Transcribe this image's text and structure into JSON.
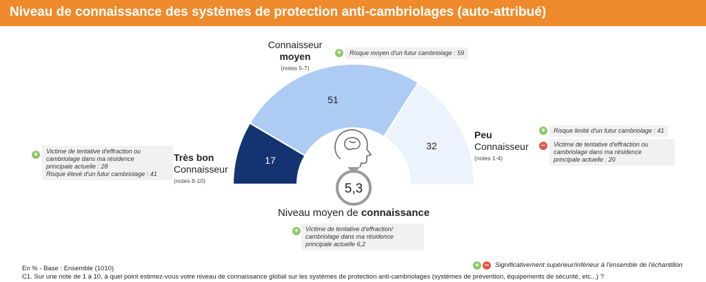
{
  "title": "Niveau de connaissance des systèmes de protection anti-cambriolages (auto-attribué)",
  "chart_data": {
    "type": "pie",
    "layout": "semi-donut",
    "unit": "%",
    "categories": [
      "Très bon Connaisseur",
      "Connaisseur moyen",
      "Peu Connaisseur"
    ],
    "values": [
      17,
      51,
      32
    ],
    "colors": [
      "#143471",
      "#aecbf4",
      "#edf3fc"
    ],
    "center_value": "5,3"
  },
  "segments": {
    "tres_bon": {
      "label_line1": "Très bon",
      "label_line2": "Connaisseur",
      "notes": "(notes 8-10)",
      "value": "17",
      "annotation_lines": [
        "Victime de tentative d'effraction ou",
        "cambriolage dans ma résidence",
        "principale actuelle : 28",
        "Risque élevé d'un futur cambriolage : 41"
      ]
    },
    "moyen": {
      "label_line1": "Connaisseur",
      "label_line2": "moyen",
      "notes": "(notes 5-7)",
      "value": "51",
      "annotation": "Risque moyen d'un futur cambriolage : 59"
    },
    "peu": {
      "label_line1": "Peu",
      "label_line2": "Connaisseur",
      "notes": "(notes 1-4)",
      "value": "32",
      "annotation_plus": "Risque limité d'un futur cambriolage : 41",
      "annotation_minus_lines": [
        "Victime de tentative d'effraction ou",
        "cambriolage dans ma résidence",
        "principale actuelle : 20"
      ]
    }
  },
  "center": {
    "value": "5,3",
    "label_prefix": "Niveau moyen de ",
    "label_bold": "connaissance",
    "annotation_lines": [
      "Victime de tentative d'effraction/",
      "cambriolage dans ma résidence",
      "principale actuelle 6,2"
    ]
  },
  "icons": {
    "center": "brain-head-icon",
    "plus": "plus-circle-icon",
    "minus": "minus-circle-icon"
  },
  "footer": {
    "base": "En % - Base : Ensemble (1010)",
    "question": "C1. Sur une note de 1 à 10, à quel point estimez-vous votre niveau de connaissance global sur les systèmes de protection anti-cambriolages (systèmes de prévention, équipements de sécurité, etc...) ?",
    "legend": "Significativement supérieur/inférieur à l'ensemble de l'échantillon"
  }
}
